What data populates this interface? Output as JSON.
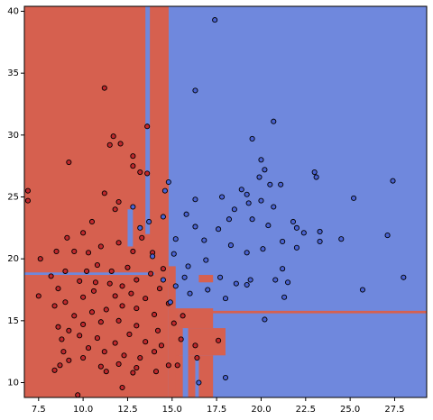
{
  "chart_data": {
    "type": "scatter",
    "xlim": [
      6.7,
      29.3
    ],
    "ylim": [
      8.8,
      40.4
    ],
    "xticks": [
      7.5,
      {
        "value": 10,
        "label": "10.0"
      },
      12.5,
      {
        "value": 15,
        "label": "15.0"
      },
      17.5,
      {
        "value": 20,
        "label": "20.0"
      },
      22.5,
      {
        "value": 25,
        "label": "25.0"
      },
      27.5
    ],
    "yticks": [
      10,
      15,
      20,
      25,
      30,
      35,
      40
    ],
    "background_color": "#6f88dd",
    "regions": [
      {
        "color": "#d6604f",
        "x": [
          6.7,
          14.8
        ],
        "y": [
          8.8,
          40.4
        ]
      },
      {
        "color": "#6f88dd",
        "x": [
          13.5,
          13.75
        ],
        "y": [
          22.0,
          40.4
        ]
      },
      {
        "color": "#6f88dd",
        "x": [
          6.7,
          14.0
        ],
        "y": [
          18.7,
          18.9
        ]
      },
      {
        "color": "#d6604f",
        "x": [
          14.3,
          14.8
        ],
        "y": [
          22.0,
          40.4
        ]
      },
      {
        "color": "#d6604f",
        "x": [
          14.8,
          15.4
        ],
        "y": [
          8.8,
          16.0
        ]
      },
      {
        "color": "#d6604f",
        "x": [
          15.2,
          18.0
        ],
        "y": [
          12.2,
          14.4
        ]
      },
      {
        "color": "#d6604f",
        "x": [
          15.2,
          17.3
        ],
        "y": [
          8.8,
          12.2
        ]
      },
      {
        "color": "#6f88dd",
        "x": [
          15.6,
          15.9
        ],
        "y": [
          8.8,
          16.0
        ]
      },
      {
        "color": "#6f88dd",
        "x": [
          16.3,
          16.5
        ],
        "y": [
          8.8,
          12.2
        ]
      },
      {
        "color": "#d6604f",
        "x": [
          15.4,
          17.3
        ],
        "y": [
          14.4,
          16.0
        ]
      },
      {
        "color": "#d6604f",
        "x": [
          15.0,
          29.3
        ],
        "y": [
          15.6,
          15.8
        ]
      },
      {
        "color": "#d6604f",
        "x": [
          16.5,
          17.3
        ],
        "y": [
          18.1,
          18.7
        ]
      },
      {
        "color": "#d6604f",
        "x": [
          14.8,
          15.2
        ],
        "y": [
          16.0,
          19.4
        ]
      },
      {
        "color": "#6f88dd",
        "x": [
          12.5,
          12.8
        ],
        "y": [
          21.0,
          24.0
        ]
      }
    ],
    "series": [
      {
        "color": "#c0282d",
        "x": [
          11.2,
          13.6,
          11.7,
          12.1,
          12.8,
          11.5,
          9.2,
          12.8,
          13.2,
          13.6,
          6.9,
          6.9,
          11.2,
          12.0,
          11.8,
          10.5,
          10.0,
          9.1,
          8.5,
          7.6,
          9.5,
          10.3,
          11.0,
          12.0,
          12.8,
          13.9,
          13.3,
          9.0,
          8.2,
          10.2,
          10.8,
          11.6,
          12.5,
          13.0,
          13.8,
          14.5,
          9.8,
          10.7,
          11.5,
          12.2,
          8.6,
          7.5,
          9.0,
          10.0,
          10.6,
          11.8,
          12.7,
          13.5,
          14.3,
          8.4,
          9.5,
          10.5,
          11.3,
          12.2,
          13.0,
          14.0,
          14.8,
          8.6,
          9.2,
          10.0,
          11.0,
          12.0,
          13.0,
          14.2,
          15.1,
          15.6,
          8.8,
          9.8,
          10.8,
          11.8,
          12.6,
          13.5,
          14.4,
          15.5,
          16.3,
          8.9,
          10.0,
          11.2,
          12.3,
          13.2,
          14.0,
          8.4,
          9.2,
          11.0,
          12.0,
          13.0,
          14.8,
          10.3,
          11.3,
          12.8,
          14.1,
          15.3,
          16.4,
          17.6,
          12.2,
          9.7,
          8.7
        ],
        "values": [
          33.8,
          30.7,
          29.9,
          29.3,
          28.3,
          29.2,
          27.8,
          27.5,
          27.0,
          26.9,
          25.5,
          24.7,
          25.3,
          24.6,
          24.0,
          23.0,
          22.1,
          21.7,
          20.6,
          20.0,
          20.6,
          20.5,
          21.0,
          21.3,
          20.6,
          20.5,
          21.7,
          19.0,
          18.6,
          19.0,
          19.5,
          19.0,
          19.3,
          18.3,
          18.8,
          19.2,
          18.2,
          18.1,
          18.0,
          17.8,
          17.6,
          17.0,
          16.5,
          16.9,
          17.4,
          17.0,
          17.2,
          16.8,
          17.6,
          16.2,
          15.4,
          15.7,
          15.9,
          16.2,
          16.0,
          15.5,
          16.4,
          14.5,
          14.2,
          14.7,
          14.9,
          15.0,
          14.6,
          14.2,
          14.8,
          15.4,
          13.5,
          13.8,
          13.6,
          13.2,
          13.9,
          13.3,
          13.0,
          13.5,
          13.0,
          12.5,
          12.0,
          12.5,
          12.2,
          12.0,
          12.5,
          11.0,
          11.8,
          11.3,
          11.5,
          11.2,
          11.4,
          12.8,
          10.9,
          10.8,
          10.9,
          11.4,
          12.0,
          13.4,
          9.6,
          9.0,
          11.4
        ]
      },
      {
        "color": "#4a63d3",
        "x": [
          17.4,
          16.3,
          20.7,
          27.4,
          23.0,
          23.1,
          19.5,
          20.0,
          20.2,
          19.9,
          20.5,
          21.1,
          25.2,
          18.9,
          19.2,
          17.8,
          16.3,
          14.8,
          14.6,
          18.5,
          19.3,
          20.0,
          20.7,
          21.8,
          22.0,
          20.4,
          19.5,
          18.2,
          17.6,
          16.3,
          15.8,
          14.5,
          13.7,
          12.8,
          13.2,
          15.2,
          16.8,
          18.3,
          19.2,
          20.1,
          21.2,
          22.0,
          23.3,
          24.5,
          27.1,
          25.7,
          28.0,
          21.2,
          20.8,
          19.4,
          18.6,
          17.7,
          16.9,
          15.9,
          15.2,
          16.0,
          17.0,
          18.0,
          19.2,
          14.5,
          15.7,
          20.2,
          21.5,
          21.3,
          16.5,
          18.0,
          14.9,
          13.9,
          15.1,
          23.3,
          22.4
        ],
        "values": [
          39.3,
          33.6,
          31.1,
          26.3,
          27.0,
          26.6,
          29.7,
          28.0,
          27.2,
          26.6,
          26.0,
          26.0,
          24.9,
          25.6,
          25.2,
          25.0,
          24.8,
          26.2,
          25.5,
          24.0,
          24.5,
          24.7,
          24.2,
          23.0,
          22.5,
          22.7,
          23.2,
          23.2,
          22.4,
          22.6,
          23.6,
          23.4,
          23.0,
          24.2,
          22.5,
          21.6,
          21.5,
          21.1,
          20.5,
          20.8,
          21.4,
          20.9,
          21.4,
          21.6,
          21.9,
          17.5,
          18.5,
          19.2,
          18.3,
          18.3,
          18.0,
          18.5,
          19.9,
          19.4,
          17.8,
          17.2,
          17.5,
          16.8,
          17.9,
          18.3,
          18.5,
          15.1,
          18.1,
          16.9,
          10.0,
          10.4,
          16.5,
          20.2,
          20.4,
          22.2,
          22.1
        ]
      }
    ]
  }
}
